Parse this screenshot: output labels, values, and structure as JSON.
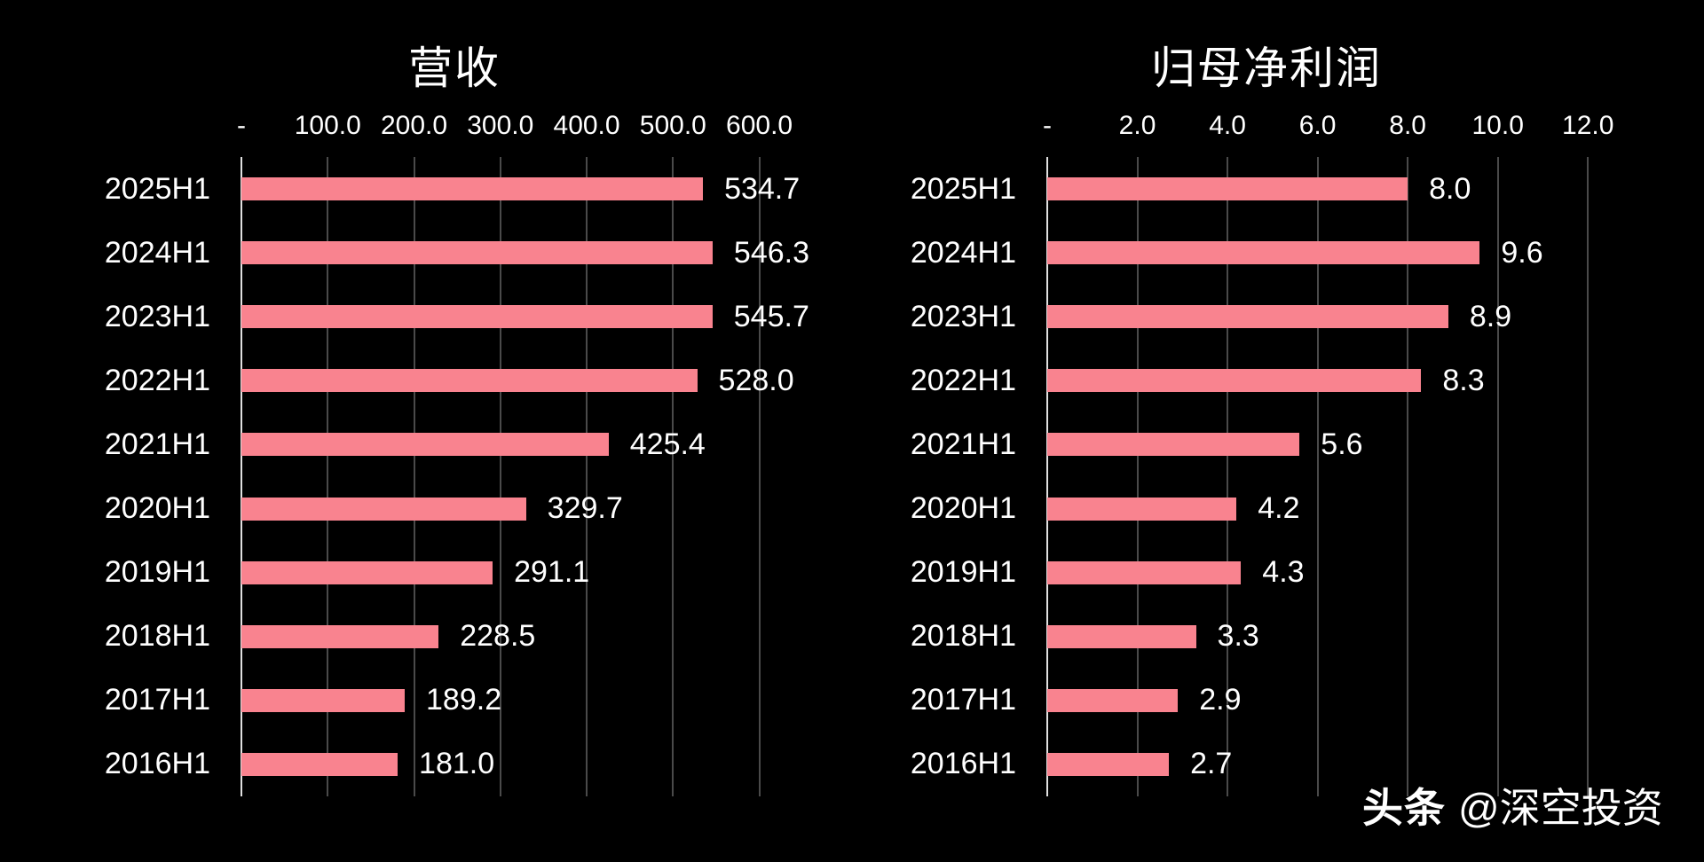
{
  "colors": {
    "background": "#000000",
    "bar": "#f9838f",
    "text": "#ffffff",
    "gridline": "#4a4a4a",
    "axis_line": "#e0e0e0"
  },
  "watermark": {
    "brand": "头条",
    "handle": "@深空投资"
  },
  "chart_data": [
    {
      "type": "bar",
      "orientation": "horizontal",
      "title": "营收",
      "categories": [
        "2025H1",
        "2024H1",
        "2023H1",
        "2022H1",
        "2021H1",
        "2020H1",
        "2019H1",
        "2018H1",
        "2017H1",
        "2016H1"
      ],
      "values": [
        534.7,
        546.3,
        545.7,
        528.0,
        425.4,
        329.7,
        291.1,
        228.5,
        189.2,
        181.0
      ],
      "value_labels": [
        "534.7",
        "546.3",
        "545.7",
        "528.0",
        "425.4",
        "329.7",
        "291.1",
        "228.5",
        "189.2",
        "181.0"
      ],
      "xticks": [
        {
          "label": "-",
          "v": 0
        },
        {
          "label": "100.0",
          "v": 100
        },
        {
          "label": "200.0",
          "v": 200
        },
        {
          "label": "300.0",
          "v": 300
        },
        {
          "label": "400.0",
          "v": 400
        },
        {
          "label": "500.0",
          "v": 500
        },
        {
          "label": "600.0",
          "v": 600
        }
      ],
      "xlim": [
        0,
        658
      ],
      "grid": true,
      "legend": null
    },
    {
      "type": "bar",
      "orientation": "horizontal",
      "title": "归母净利润",
      "categories": [
        "2025H1",
        "2024H1",
        "2023H1",
        "2022H1",
        "2021H1",
        "2020H1",
        "2019H1",
        "2018H1",
        "2017H1",
        "2016H1"
      ],
      "values": [
        8.0,
        9.6,
        8.9,
        8.3,
        5.6,
        4.2,
        4.3,
        3.3,
        2.9,
        2.7
      ],
      "value_labels": [
        "8.0",
        "9.6",
        "8.9",
        "8.3",
        "5.6",
        "4.2",
        "4.3",
        "3.3",
        "2.9",
        "2.7"
      ],
      "xticks": [
        {
          "label": "-",
          "v": 0
        },
        {
          "label": "2.0",
          "v": 2
        },
        {
          "label": "4.0",
          "v": 4
        },
        {
          "label": "6.0",
          "v": 6
        },
        {
          "label": "8.0",
          "v": 8
        },
        {
          "label": "10.0",
          "v": 10
        },
        {
          "label": "12.0",
          "v": 12
        }
      ],
      "xlim": [
        0,
        13
      ],
      "grid": true,
      "legend": null
    }
  ]
}
